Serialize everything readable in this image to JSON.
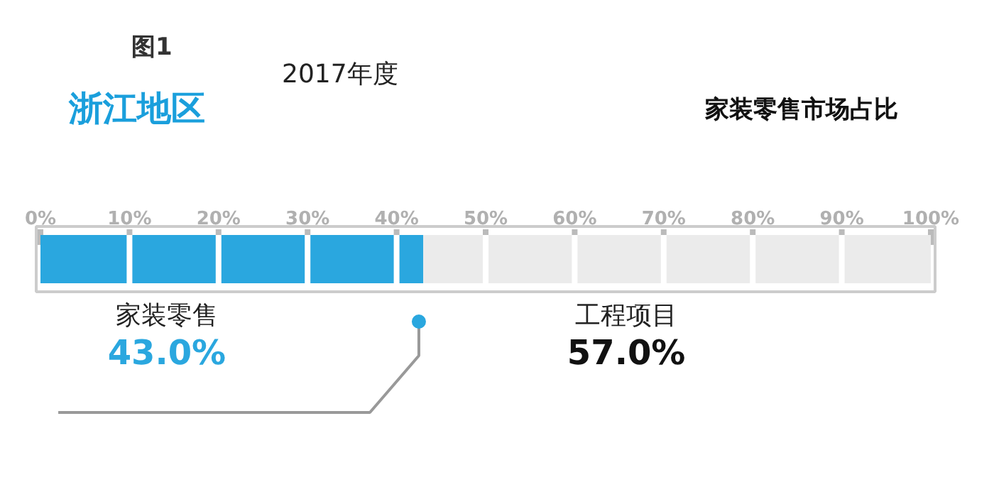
{
  "chart_data": {
    "type": "bar",
    "orientation": "horizontal",
    "stacked": true,
    "title": "浙江地区",
    "subtitle": "家装零售市场占比",
    "annotations": [
      "图1",
      "2017年度",
      "43.0%",
      "57.0%"
    ],
    "categories": [
      null
    ],
    "series": [
      {
        "name": "家装零售",
        "color": "#2aa7df",
        "values": [
          43.0
        ]
      },
      {
        "name": "工程项目",
        "color": "#ebebeb",
        "values": [
          57.0
        ]
      }
    ],
    "xlim": [
      0,
      100
    ],
    "xticks": [
      {
        "value": 0,
        "label": "0%"
      },
      {
        "value": 10,
        "label": "10%"
      },
      {
        "value": 20,
        "label": "20%"
      },
      {
        "value": 30,
        "label": "30%"
      },
      {
        "value": 40,
        "label": "40%"
      },
      {
        "value": 50,
        "label": "50%"
      },
      {
        "value": 60,
        "label": "60%"
      },
      {
        "value": 70,
        "label": "70%"
      },
      {
        "value": 80,
        "label": "80%"
      },
      {
        "value": 90,
        "label": "90%"
      },
      {
        "value": 100,
        "label": "100%"
      }
    ],
    "grid": "x"
  }
}
